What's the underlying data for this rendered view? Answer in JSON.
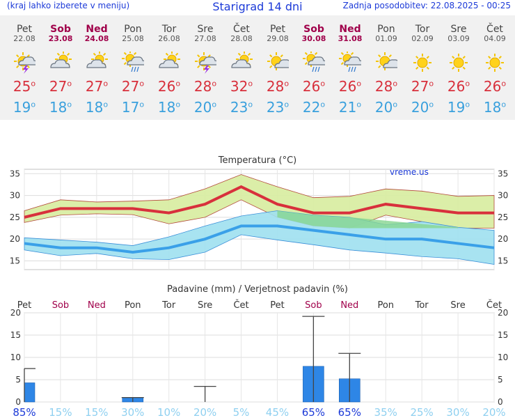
{
  "header": {
    "menu_hint": "(kraj lahko izberete v meniju)",
    "title": "Starigrad 14 dni",
    "updated": "Zadnja posodobitev: 22.08.2025 - 00:25"
  },
  "days": [
    {
      "name": "Pet",
      "date": "22.08",
      "weekend": false,
      "icon": "thunderstorm-sun-icon",
      "tmax": "25",
      "tmin": "19",
      "precip_prob": "85%"
    },
    {
      "name": "Sob",
      "date": "23.08",
      "weekend": true,
      "icon": "partly-cloudy-icon",
      "tmax": "27",
      "tmin": "18",
      "precip_prob": "15%"
    },
    {
      "name": "Ned",
      "date": "24.08",
      "weekend": true,
      "icon": "partly-cloudy-icon",
      "tmax": "27",
      "tmin": "18",
      "precip_prob": "15%"
    },
    {
      "name": "Pon",
      "date": "25.08",
      "weekend": false,
      "icon": "sun-cloud-rain-icon",
      "tmax": "27",
      "tmin": "17",
      "precip_prob": "30%"
    },
    {
      "name": "Tor",
      "date": "26.08",
      "weekend": false,
      "icon": "partly-cloudy-icon",
      "tmax": "26",
      "tmin": "18",
      "precip_prob": "10%"
    },
    {
      "name": "Sre",
      "date": "27.08",
      "weekend": false,
      "icon": "thunderstorm-sun-icon",
      "tmax": "28",
      "tmin": "20",
      "precip_prob": "20%"
    },
    {
      "name": "Čet",
      "date": "28.08",
      "weekend": false,
      "icon": "partly-cloudy-icon",
      "tmax": "32",
      "tmin": "23",
      "precip_prob": "5%"
    },
    {
      "name": "Pet",
      "date": "29.08",
      "weekend": false,
      "icon": "sun-small-cloud-icon",
      "tmax": "28",
      "tmin": "23",
      "precip_prob": "45%"
    },
    {
      "name": "Sob",
      "date": "30.08",
      "weekend": true,
      "icon": "sun-cloud-rain-icon",
      "tmax": "26",
      "tmin": "22",
      "precip_prob": "65%"
    },
    {
      "name": "Ned",
      "date": "31.08",
      "weekend": true,
      "icon": "sun-cloud-rain-icon",
      "tmax": "26",
      "tmin": "21",
      "precip_prob": "65%"
    },
    {
      "name": "Pon",
      "date": "01.09",
      "weekend": false,
      "icon": "sun-small-cloud-icon",
      "tmax": "28",
      "tmin": "20",
      "precip_prob": "35%"
    },
    {
      "name": "Tor",
      "date": "02.09",
      "weekend": false,
      "icon": "sun-icon",
      "tmax": "27",
      "tmin": "20",
      "precip_prob": "25%"
    },
    {
      "name": "Sre",
      "date": "03.09",
      "weekend": false,
      "icon": "sun-icon",
      "tmax": "26",
      "tmin": "19",
      "precip_prob": "30%"
    },
    {
      "name": "Čet",
      "date": "04.09",
      "weekend": false,
      "icon": "sun-icon",
      "tmax": "26",
      "tmin": "18",
      "precip_prob": "20%"
    }
  ],
  "colors": {
    "max_line": "#d8303c",
    "max_band": "#d7ec9e",
    "min_line": "#3aa0e8",
    "min_band": "#9ee0f0",
    "overlap": "#86d690",
    "bar": "#2e86e6",
    "whisker": "#444444",
    "prob_high": "#1c3ad8",
    "prob_low": "#8fd0f0",
    "title": "#1c3ad8",
    "weekend": "#a0004a"
  },
  "chart_data": [
    {
      "type": "line",
      "title": "Temperatura (°C)",
      "watermark": "vreme.us",
      "ylim": [
        13,
        36
      ],
      "yticks": [
        15,
        20,
        25,
        30,
        35
      ],
      "categories": [
        "22.08",
        "23.08",
        "24.08",
        "25.08",
        "26.08",
        "27.08",
        "28.08",
        "29.08",
        "30.08",
        "31.08",
        "01.09",
        "02.09",
        "03.09",
        "04.09"
      ],
      "series": [
        {
          "name": "max",
          "values": [
            25,
            27,
            27,
            27,
            26,
            28,
            32,
            28,
            26,
            26,
            28,
            27,
            26,
            26
          ]
        },
        {
          "name": "max_upper",
          "values": [
            26.5,
            29,
            28.5,
            28.7,
            29,
            31.5,
            34.8,
            32,
            29.5,
            29.8,
            31.5,
            31,
            29.8,
            30
          ]
        },
        {
          "name": "max_lower",
          "values": [
            23.8,
            25.5,
            25.8,
            25.6,
            23.5,
            25,
            29,
            25,
            23,
            22.5,
            25.5,
            24,
            22.5,
            22.5
          ]
        },
        {
          "name": "min",
          "values": [
            19,
            18,
            18,
            17,
            18,
            20,
            23,
            23,
            22,
            21,
            20,
            20,
            19,
            18
          ]
        },
        {
          "name": "min_upper",
          "values": [
            20.3,
            19.8,
            19.3,
            18.5,
            20.5,
            23,
            25.3,
            26.5,
            25.5,
            25,
            23.3,
            24,
            22.7,
            22
          ]
        },
        {
          "name": "min_lower",
          "values": [
            17.5,
            16.2,
            16.7,
            15.5,
            15.3,
            17,
            21,
            19.8,
            18.7,
            17.5,
            16.8,
            16,
            15.5,
            14.2
          ]
        }
      ]
    },
    {
      "type": "bar",
      "title": "Padavine (mm) / Verjetnost padavin (%)",
      "ylim": [
        0,
        20
      ],
      "yticks": [
        0,
        5,
        10,
        15,
        20
      ],
      "categories": [
        "Pet",
        "Sob",
        "Ned",
        "Pon",
        "Tor",
        "Sre",
        "Čet",
        "Pet",
        "Sob",
        "Ned",
        "Pon",
        "Tor",
        "Sre",
        "Čet"
      ],
      "values": [
        4.3,
        0,
        0,
        1,
        0,
        0,
        0,
        0,
        8,
        5.2,
        0,
        0,
        0,
        0
      ],
      "whisker_max": [
        7.5,
        0,
        0,
        1,
        0,
        3.5,
        0,
        0,
        19.2,
        10.9,
        0,
        0,
        0,
        0
      ],
      "probability": [
        "85%",
        "15%",
        "15%",
        "30%",
        "10%",
        "20%",
        "5%",
        "45%",
        "65%",
        "65%",
        "35%",
        "25%",
        "30%",
        "20%"
      ]
    }
  ]
}
